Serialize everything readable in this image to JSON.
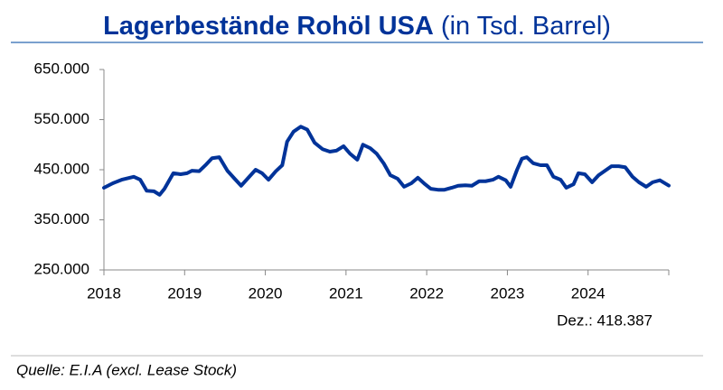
{
  "chart_data": {
    "type": "line",
    "title": "Lagerbestände Rohöl USA",
    "subtitle": "(in Tsd. Barrel)",
    "annotation": "Dez.: 418.387",
    "source": "Quelle: E.I.A (excl. Lease Stock)",
    "xlim": [
      2018,
      2025
    ],
    "xticks": [
      2018,
      2019,
      2020,
      2021,
      2022,
      2023,
      2024
    ],
    "ylim": [
      250000,
      650000
    ],
    "yticks": [
      {
        "value": 250000,
        "label": "250.000"
      },
      {
        "value": 350000,
        "label": "350.000"
      },
      {
        "value": 450000,
        "label": "450.000"
      },
      {
        "value": 550000,
        "label": "550.000"
      },
      {
        "value": 650000,
        "label": "650.000"
      }
    ],
    "grid": false,
    "series": [
      {
        "color": "#003399",
        "x": [
          2018.0,
          2018.11,
          2018.22,
          2018.37,
          2018.45,
          2018.53,
          2018.62,
          2018.69,
          2018.75,
          2018.86,
          2018.95,
          2019.03,
          2019.09,
          2019.18,
          2019.27,
          2019.34,
          2019.43,
          2019.53,
          2019.62,
          2019.7,
          2019.79,
          2019.88,
          2019.96,
          2020.04,
          2020.13,
          2020.21,
          2020.27,
          2020.35,
          2020.44,
          2020.52,
          2020.61,
          2020.71,
          2020.8,
          2020.88,
          2020.97,
          2021.05,
          2021.14,
          2021.21,
          2021.3,
          2021.38,
          2021.47,
          2021.55,
          2021.64,
          2021.72,
          2021.81,
          2021.89,
          2021.98,
          2022.05,
          2022.14,
          2022.22,
          2022.31,
          2022.39,
          2022.48,
          2022.56,
          2022.65,
          2022.73,
          2022.82,
          2022.89,
          2022.98,
          2023.04,
          2023.12,
          2023.18,
          2023.24,
          2023.32,
          2023.41,
          2023.49,
          2023.57,
          2023.66,
          2023.73,
          2023.82,
          2023.88,
          2023.96,
          2024.05,
          2024.13,
          2024.21,
          2024.29,
          2024.38,
          2024.46,
          2024.55,
          2024.63,
          2024.72,
          2024.8,
          2024.89,
          2025.0
        ],
        "values": [
          414000,
          423000,
          430000,
          436000,
          430000,
          408000,
          407000,
          400000,
          412000,
          443000,
          441000,
          443000,
          448000,
          447000,
          461000,
          473000,
          475000,
          448000,
          432000,
          418000,
          434000,
          450000,
          443000,
          430000,
          447000,
          459000,
          506000,
          526000,
          536000,
          530000,
          504000,
          491000,
          486000,
          488000,
          497000,
          482000,
          470000,
          500000,
          493000,
          482000,
          462000,
          439000,
          432000,
          416000,
          423000,
          434000,
          421000,
          412000,
          410000,
          410000,
          414000,
          418000,
          419000,
          418000,
          427000,
          427000,
          430000,
          436000,
          429000,
          416000,
          450000,
          472000,
          475000,
          463000,
          459000,
          459000,
          436000,
          430000,
          414000,
          421000,
          443000,
          441000,
          425000,
          439000,
          448000,
          457000,
          457000,
          455000,
          436000,
          425000,
          416000,
          425000,
          429000,
          418387
        ]
      }
    ]
  }
}
